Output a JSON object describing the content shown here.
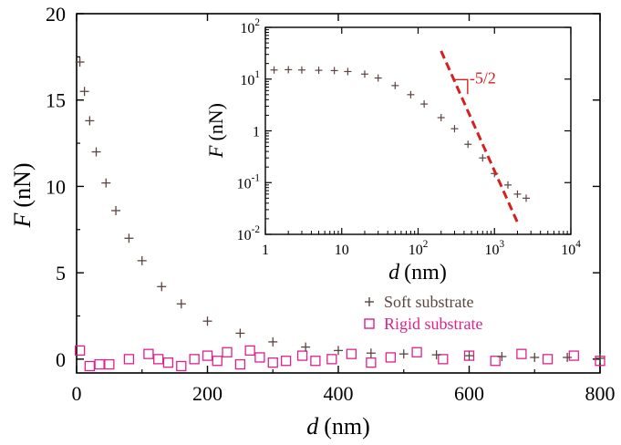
{
  "chart_data": [
    {
      "type": "scatter",
      "xlabel": "d",
      "xunit": "(nm)",
      "ylabel": "F",
      "yunit": "(nN)",
      "xlim": [
        0,
        800
      ],
      "ylim": [
        -0.8,
        20
      ],
      "xticks": [
        "0",
        "200",
        "400",
        "600",
        "800"
      ],
      "yticks": [
        "0",
        "5",
        "10",
        "15",
        "20"
      ],
      "legend_position": "right, below inset",
      "series": [
        {
          "name": "Soft substrate",
          "marker": "+",
          "color": "#5a4540",
          "x": [
            5,
            12,
            20,
            30,
            45,
            60,
            80,
            100,
            130,
            160,
            200,
            250,
            300,
            350,
            400,
            450,
            500,
            550,
            600,
            650,
            700,
            750,
            800
          ],
          "y": [
            17.2,
            15.5,
            13.8,
            12.0,
            10.2,
            8.6,
            7.0,
            5.7,
            4.2,
            3.2,
            2.2,
            1.5,
            1.0,
            0.7,
            0.5,
            0.35,
            0.3,
            0.25,
            0.2,
            0.15,
            0.1,
            0.1,
            0.05
          ]
        },
        {
          "name": "Rigid substrate",
          "marker": "square",
          "color": "#e0208c",
          "x": [
            5,
            20,
            35,
            50,
            80,
            110,
            125,
            140,
            160,
            180,
            200,
            215,
            230,
            250,
            265,
            280,
            300,
            320,
            345,
            365,
            390,
            420,
            450,
            480,
            520,
            560,
            600,
            640,
            680,
            720,
            760,
            800
          ],
          "y": [
            0.5,
            -0.4,
            -0.3,
            -0.3,
            0.0,
            0.3,
            0.0,
            -0.2,
            -0.4,
            0.0,
            0.2,
            -0.1,
            0.4,
            -0.3,
            0.5,
            0.1,
            -0.2,
            -0.1,
            0.2,
            -0.1,
            0.0,
            0.3,
            -0.2,
            0.1,
            0.4,
            0.0,
            0.2,
            -0.1,
            0.3,
            0.0,
            0.2,
            -0.1
          ]
        }
      ]
    },
    {
      "type": "scatter",
      "xlabel": "d",
      "xunit": "(nm)",
      "ylabel": "F",
      "yunit": "(nN)",
      "xscale": "log",
      "yscale": "log",
      "xlim": [
        1,
        10000
      ],
      "ylim": [
        0.01,
        100
      ],
      "xticks": [
        {
          "base": "1",
          "exp": ""
        },
        {
          "base": "10",
          "exp": ""
        },
        {
          "base": "10",
          "exp": "2"
        },
        {
          "base": "10",
          "exp": "3"
        },
        {
          "base": "10",
          "exp": "4"
        }
      ],
      "yticks": [
        {
          "base": "10",
          "exp": "-2"
        },
        {
          "base": "10",
          "exp": "-1"
        },
        {
          "base": "1",
          "exp": ""
        },
        {
          "base": "10",
          "exp": "1"
        },
        {
          "base": "10",
          "exp": "2"
        }
      ],
      "series": [
        {
          "name": "Soft substrate",
          "marker": "+",
          "color": "#5a4540",
          "x": [
            1.3,
            2,
            3,
            5,
            8,
            12,
            20,
            30,
            50,
            80,
            120,
            200,
            300,
            450,
            700,
            1000,
            1500,
            2000,
            2600
          ],
          "y": [
            15,
            15.2,
            15.0,
            14.8,
            14.6,
            14.0,
            12.5,
            10.5,
            7.5,
            5.0,
            3.3,
            1.8,
            1.1,
            0.55,
            0.3,
            0.15,
            0.09,
            0.06,
            0.05
          ]
        }
      ],
      "annotations": {
        "fit_line": {
          "color": "#d42020",
          "style": "dashed",
          "slope_label": "-5/2",
          "from": [
            200,
            35
          ],
          "to": [
            2000,
            0.017
          ]
        }
      }
    }
  ]
}
